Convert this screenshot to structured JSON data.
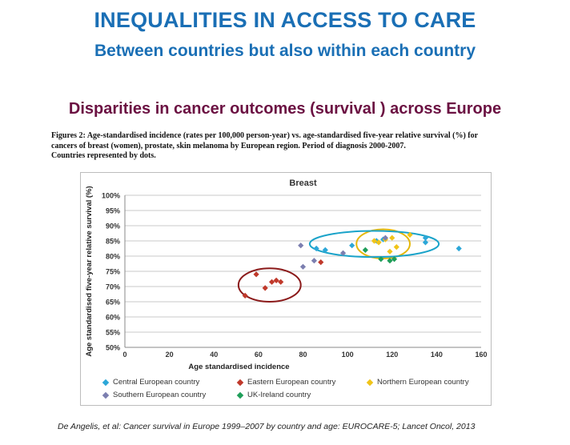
{
  "header": {
    "title": "INEQUALITIES IN ACCESS TO CARE",
    "subtitle": "Between countries but also within each country"
  },
  "section": {
    "heading": "Disparities in cancer outcomes (survival ) across Europe"
  },
  "figure": {
    "caption_lines": [
      "Figures 2: Age-standardised incidence (rates per 100,000 person-year) vs. age-standardised five-year relative survival (%) for",
      "cancers of  breast (women),  prostate, skin melanoma by European region. Period of diagnosis 2000-2007.",
      "Countries represented by dots."
    ]
  },
  "colors": {
    "title": "#1a6fb5",
    "heading": "#6b1142",
    "grid": "#c8c8c8",
    "central": "#2ca7d8",
    "eastern": "#c0392b",
    "northern": "#f0c419",
    "southern": "#7c7fb0",
    "uk": "#1f9e5a",
    "ellipse_eastern": "#8b1a1a",
    "ellipse_northern": "#e5b80b",
    "ellipse_central": "#1aa3c9"
  },
  "chart_data": {
    "type": "scatter",
    "title": "Breast",
    "xlabel": "Age standardised incidence",
    "ylabel": "Age standardised five-year relative survival (%)",
    "xlim": [
      0,
      160
    ],
    "ylim": [
      50,
      100
    ],
    "x_ticks": [
      "0",
      "20",
      "40",
      "60",
      "80",
      "100",
      "120",
      "140",
      "160"
    ],
    "y_ticks": [
      "50%",
      "55%",
      "60%",
      "65%",
      "70%",
      "75%",
      "80%",
      "85%",
      "90%",
      "95%",
      "100%"
    ],
    "grid": "horizontal",
    "legend_position": "bottom",
    "series": [
      {
        "name": "Central European country",
        "color_key": "central",
        "points": [
          [
            86,
            82.5
          ],
          [
            90,
            82
          ],
          [
            102,
            83.5
          ],
          [
            113,
            85
          ],
          [
            116,
            85.5
          ],
          [
            135,
            86
          ],
          [
            135,
            84.5
          ],
          [
            150,
            82.5
          ]
        ]
      },
      {
        "name": "Eastern European country",
        "color_key": "eastern",
        "points": [
          [
            54,
            67
          ],
          [
            59,
            74
          ],
          [
            63,
            69.5
          ],
          [
            66,
            71.5
          ],
          [
            68,
            72
          ],
          [
            70,
            71.5
          ],
          [
            88,
            78
          ]
        ]
      },
      {
        "name": "Northern European country",
        "color_key": "northern",
        "points": [
          [
            112,
            85
          ],
          [
            114,
            84.5
          ],
          [
            117,
            85.5
          ],
          [
            120,
            86
          ],
          [
            122,
            83
          ],
          [
            119,
            81.5
          ],
          [
            128,
            87
          ]
        ]
      },
      {
        "name": "Southern European country",
        "color_key": "southern",
        "points": [
          [
            79,
            83.5
          ],
          [
            80,
            76.5
          ],
          [
            85,
            78.5
          ],
          [
            98,
            81
          ],
          [
            117,
            86
          ]
        ]
      },
      {
        "name": "UK-Ireland country",
        "color_key": "uk",
        "points": [
          [
            108,
            82
          ],
          [
            115,
            79
          ],
          [
            119,
            78.5
          ],
          [
            121,
            79
          ]
        ]
      }
    ],
    "annotations": [
      {
        "shape": "ellipse",
        "color_key": "ellipse_eastern",
        "cx": 65,
        "cy": 70.5,
        "rx": 14,
        "ry": 5.5
      },
      {
        "shape": "ellipse",
        "color_key": "ellipse_northern",
        "cx": 116,
        "cy": 84,
        "rx": 12,
        "ry": 4.8
      },
      {
        "shape": "ellipse",
        "color_key": "ellipse_central",
        "cx": 112,
        "cy": 84,
        "rx": 29,
        "ry": 4.3
      }
    ]
  },
  "citation": "De Angelis, et al: Cancer survival in Europe 1999–2007 by country and age: EUROCARE-5; Lancet Oncol, 2013"
}
